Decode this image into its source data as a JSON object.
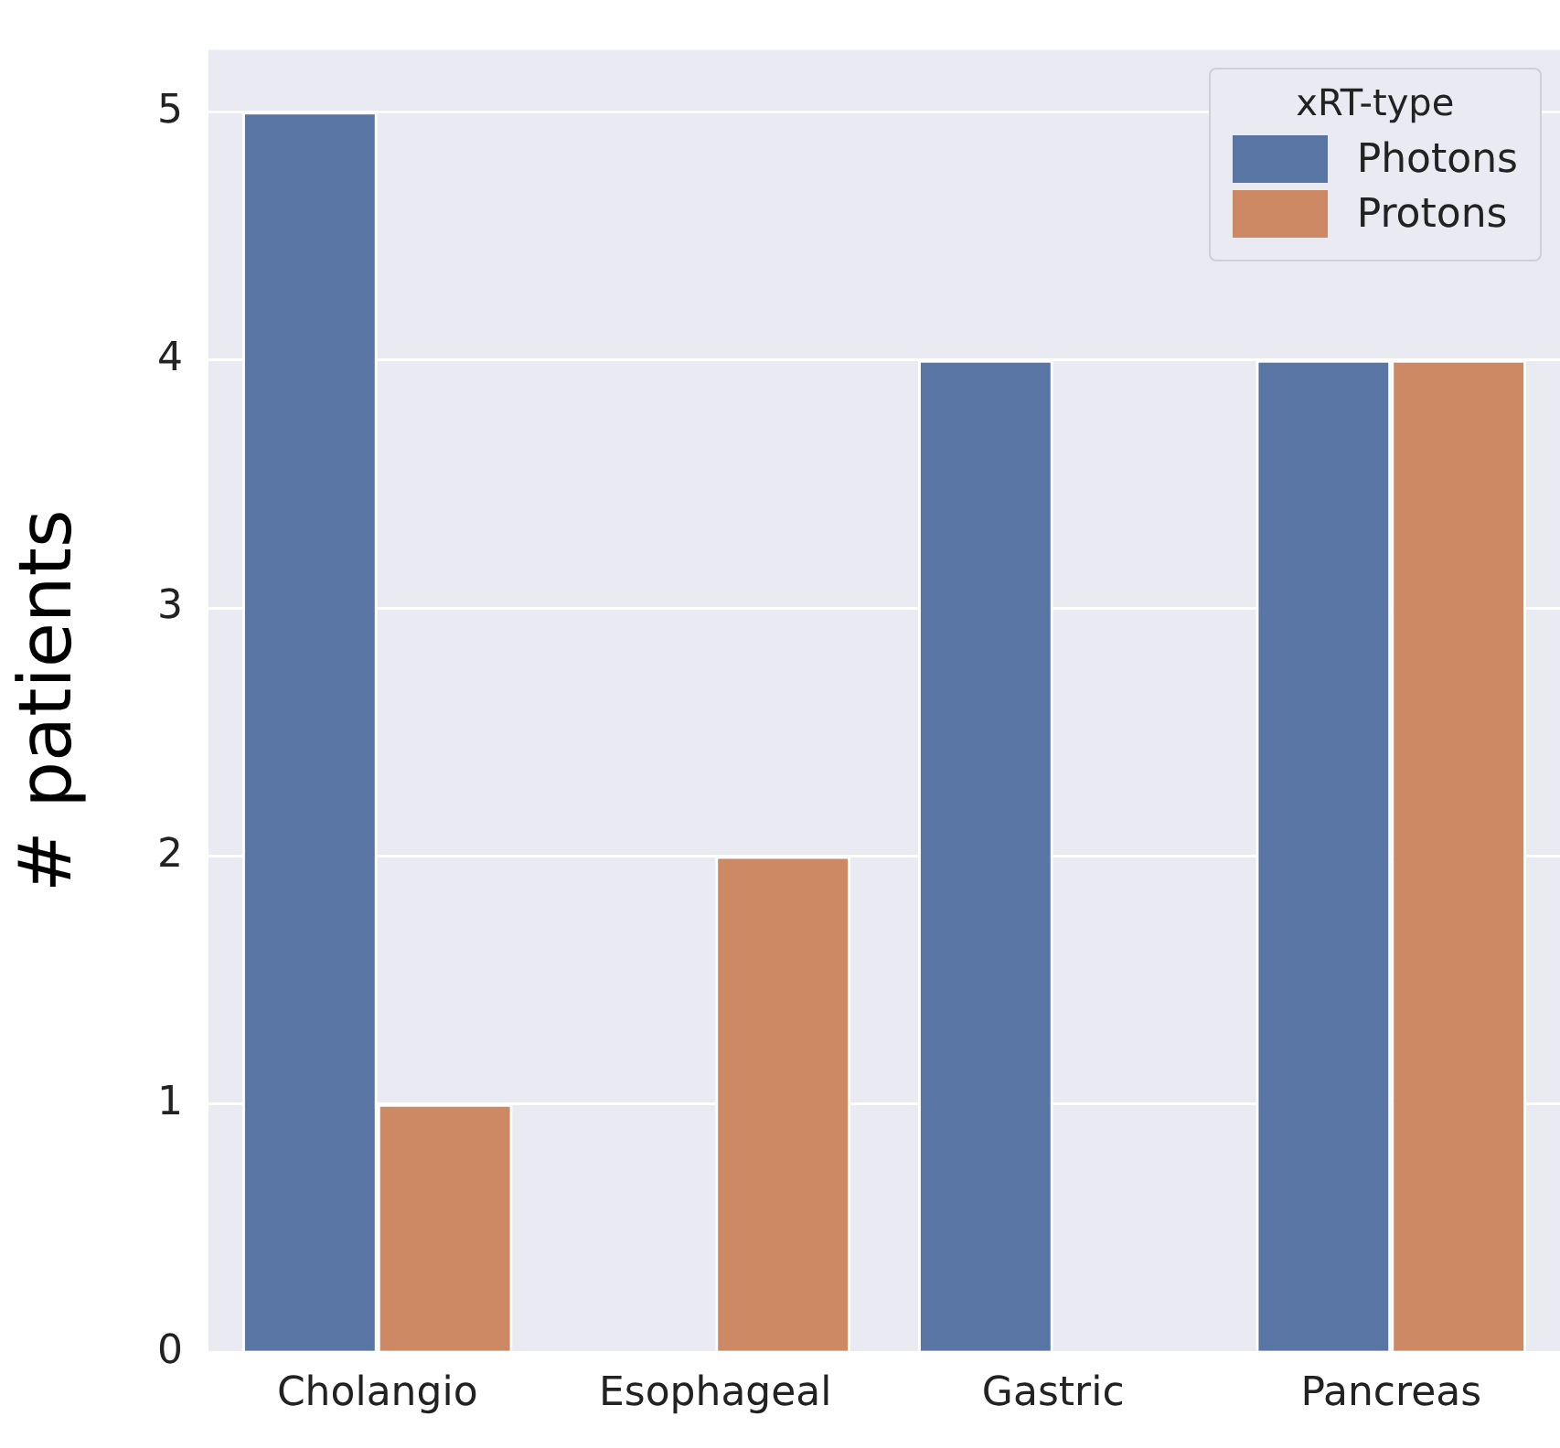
{
  "chart_data": {
    "type": "bar",
    "ylabel": "# patients",
    "legend_title": "xRT-type",
    "categories": [
      "Cholangio",
      "Esophageal",
      "Gastric",
      "Pancreas"
    ],
    "series": [
      {
        "name": "Photons",
        "color": "#5975a4",
        "values": [
          5,
          0,
          4,
          4
        ]
      },
      {
        "name": "Protons",
        "color": "#cc8963",
        "values": [
          1,
          2,
          0,
          4
        ]
      }
    ],
    "ylim": [
      0,
      5.25
    ],
    "yticks": [
      0,
      1,
      2,
      3,
      4,
      5
    ],
    "grid": "y",
    "legend": "top right"
  }
}
